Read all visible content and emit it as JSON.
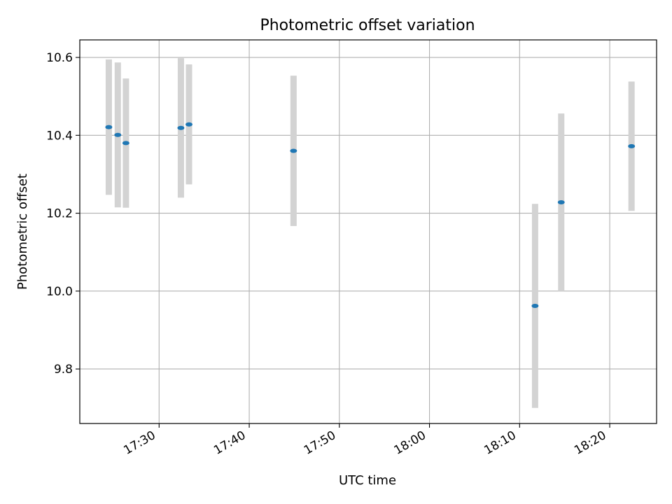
{
  "chart_data": {
    "type": "scatter",
    "title": "Photometric offset variation",
    "xlabel": "UTC time",
    "ylabel": "Photometric offset",
    "x_range": [
      "17:21:12",
      "18:25:12"
    ],
    "xlim_minutes": [
      1041.2,
      1105.2
    ],
    "ylim": [
      9.66,
      10.645
    ],
    "x_ticks": [
      "17:30",
      "17:40",
      "17:50",
      "18:00",
      "18:10",
      "18:20"
    ],
    "y_ticks": [
      "9.8",
      "10.0",
      "10.2",
      "10.4",
      "10.6"
    ],
    "y_tick_values": [
      9.8,
      10.0,
      10.2,
      10.4,
      10.6
    ],
    "grid": true,
    "legend": "none",
    "series": [
      {
        "points": [
          {
            "time": "17:24:25",
            "y": 10.421,
            "err": 0.174
          },
          {
            "time": "17:25:25",
            "y": 10.401,
            "err": 0.186
          },
          {
            "time": "17:26:19",
            "y": 10.38,
            "err": 0.166
          },
          {
            "time": "17:32:25",
            "y": 10.419,
            "err": 0.179
          },
          {
            "time": "17:33:19",
            "y": 10.428,
            "err": 0.154
          },
          {
            "time": "17:44:55",
            "y": 10.36,
            "err": 0.193
          },
          {
            "time": "18:11:43",
            "y": 9.962,
            "err": 0.262
          },
          {
            "time": "18:14:37",
            "y": 10.228,
            "err": 0.228
          },
          {
            "time": "18:22:25",
            "y": 10.372,
            "err": 0.166
          }
        ],
        "marker_color": "#1f77b4",
        "errorbar_color": "#d3d3d3"
      }
    ]
  }
}
